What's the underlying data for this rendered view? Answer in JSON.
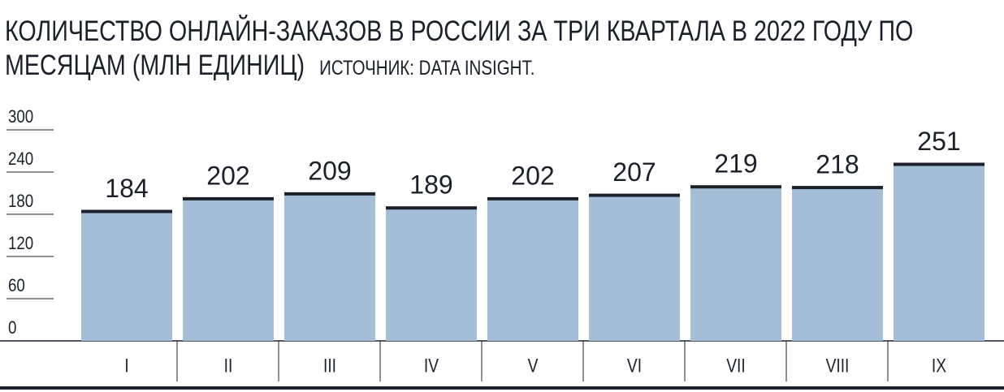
{
  "chart_data": {
    "type": "bar",
    "title": "КОЛИЧЕСТВО ОНЛАЙН-ЗАКАЗОВ В РОССИИ ЗА ТРИ КВАРТАЛА В 2022 ГОДУ ПО МЕСЯЦАМ (МЛН ЕДИНИЦ)",
    "subtitle": "ИСТОЧНИК: DATA INSIGHT.",
    "categories": [
      "I",
      "II",
      "III",
      "IV",
      "V",
      "VI",
      "VII",
      "VIII",
      "IX"
    ],
    "values": [
      184,
      202,
      209,
      189,
      202,
      207,
      219,
      218,
      251
    ],
    "color": "#a4bed7",
    "cap_color": "#1b202b",
    "ylim": [
      0,
      300
    ],
    "yticks": [
      0,
      60,
      120,
      180,
      240,
      300
    ],
    "grid": true
  }
}
